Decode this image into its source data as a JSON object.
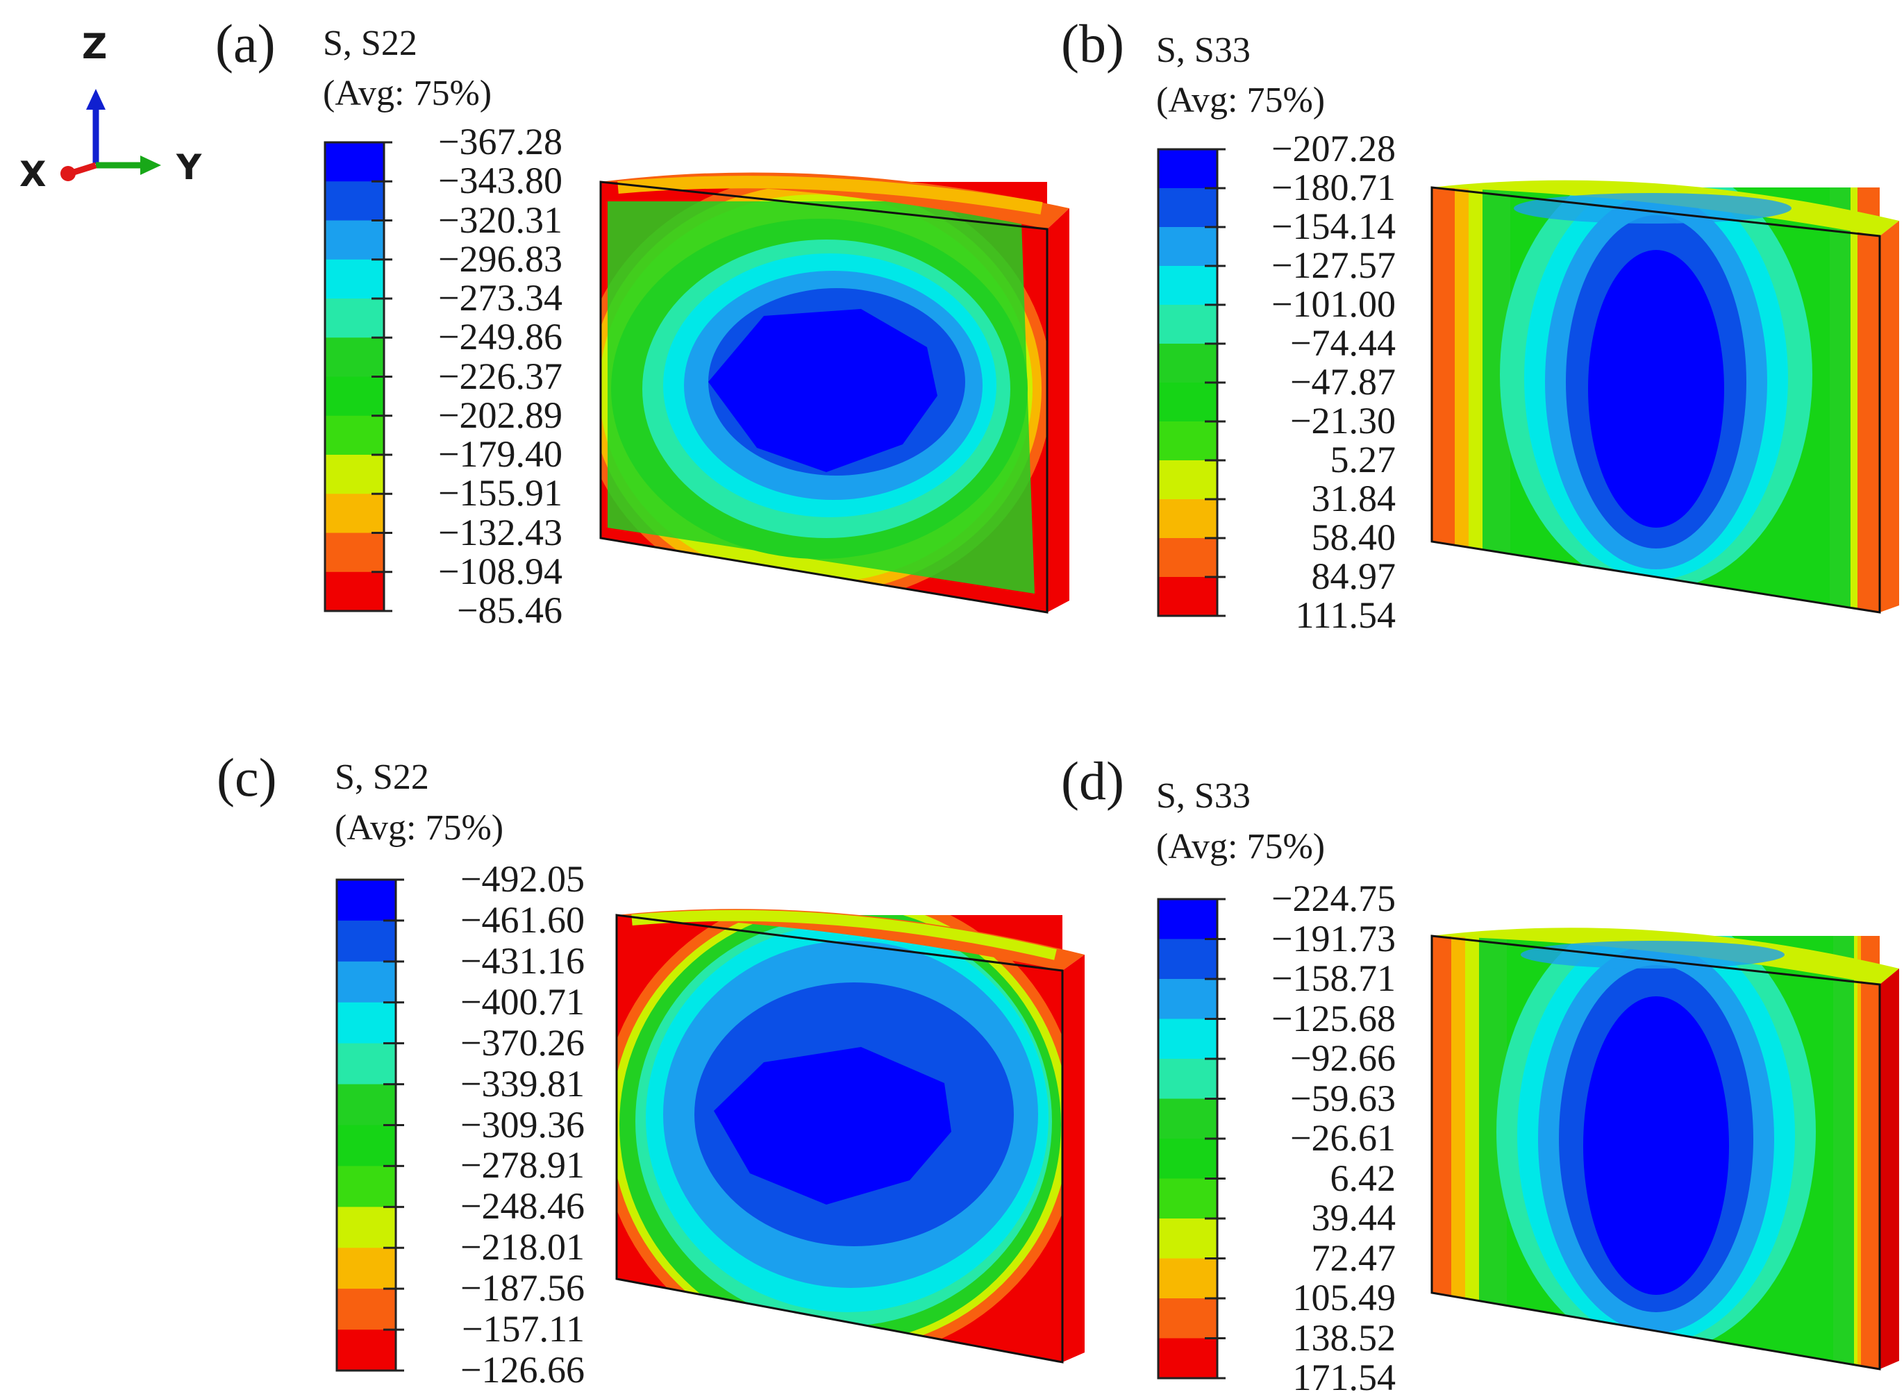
{
  "triad": {
    "z_label": "Z",
    "x_label": "X",
    "y_label": "Y",
    "colors": {
      "z": "#1020d0",
      "x": "#e01818",
      "y": "#18a818"
    }
  },
  "contour_colors": [
    "#0000ff",
    "#0b4fe6",
    "#1ba0ee",
    "#00e8e8",
    "#27e8a8",
    "#22d022",
    "#16d416",
    "#39dc10",
    "#ccf000",
    "#f8b800",
    "#f86010",
    "#f00000"
  ],
  "panels": [
    {
      "letter": "(a)",
      "variable": "S, S22",
      "averaging": "(Avg: 75%)",
      "ticks": [
        "−367.28",
        "−343.80",
        "−320.31",
        "−296.83",
        "−273.34",
        "−249.86",
        "−226.37",
        "−202.89",
        "−179.40",
        "−155.91",
        "−132.43",
        "−108.94",
        "−85.46"
      ]
    },
    {
      "letter": "(b)",
      "variable": "S, S33",
      "averaging": "(Avg: 75%)",
      "ticks": [
        "−207.28",
        "−180.71",
        "−154.14",
        "−127.57",
        "−101.00",
        "−74.44",
        "−47.87",
        "−21.30",
        "5.27",
        "31.84",
        "58.40",
        "84.97",
        "111.54"
      ]
    },
    {
      "letter": "(c)",
      "variable": "S, S22",
      "averaging": "(Avg: 75%)",
      "ticks": [
        "−492.05",
        "−461.60",
        "−431.16",
        "−400.71",
        "−370.26",
        "−339.81",
        "−309.36",
        "−278.91",
        "−248.46",
        "−218.01",
        "−187.56",
        "−157.11",
        "−126.66"
      ]
    },
    {
      "letter": "(d)",
      "variable": "S, S33",
      "averaging": "(Avg: 75%)",
      "ticks": [
        "−224.75",
        "−191.73",
        "−158.71",
        "−125.68",
        "−92.66",
        "−59.63",
        "−26.61",
        "6.42",
        "39.44",
        "72.47",
        "105.49",
        "138.52",
        "171.54"
      ]
    }
  ]
}
